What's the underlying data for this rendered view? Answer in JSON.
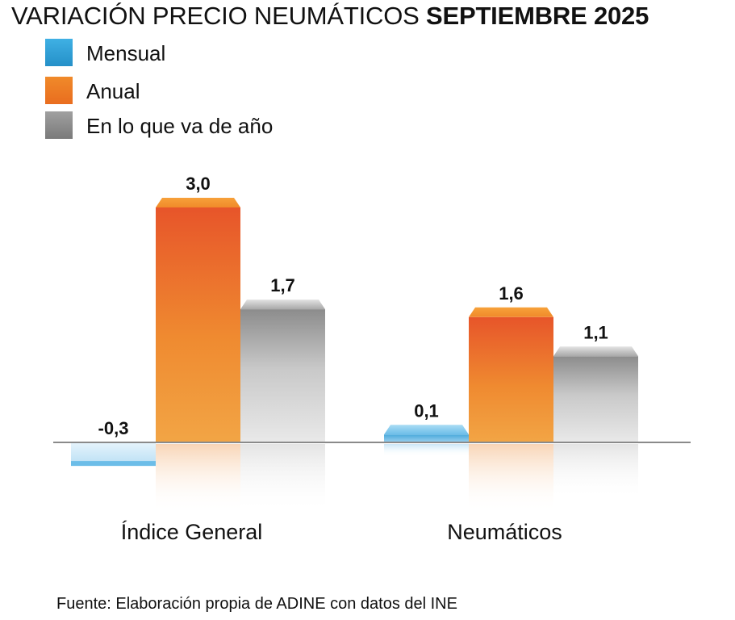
{
  "title": {
    "regular": "VARIACIÓN PRECIO NEUMÁTICOS",
    "bold": "SEPTIEMBRE 2025"
  },
  "legend": [
    {
      "label": "Mensual",
      "color": "#2f9fd6"
    },
    {
      "label": "Anual",
      "color": "#ee7a22"
    },
    {
      "label": "En lo que va de año",
      "color": "#8a8a8a"
    }
  ],
  "source": "Fuente: Elaboración propia de ADINE con datos del INE",
  "chart_data": {
    "type": "bar",
    "title": "VARIACIÓN PRECIO NEUMÁTICOS SEPTIEMBRE 2025",
    "categories": [
      "Índice General",
      "Neumáticos"
    ],
    "series": [
      {
        "name": "Mensual",
        "values": [
          -0.3,
          0.1
        ],
        "labels": [
          "-0,3",
          "0,1"
        ]
      },
      {
        "name": "Anual",
        "values": [
          3.0,
          1.6
        ],
        "labels": [
          "3,0",
          "1,6"
        ]
      },
      {
        "name": "En lo que va de año",
        "values": [
          1.7,
          1.1
        ],
        "labels": [
          "1,7",
          "1,1"
        ]
      }
    ],
    "xlabel": "",
    "ylabel": "",
    "ylim": [
      -0.3,
      3.0
    ],
    "grid": false,
    "legend_position": "top-left"
  }
}
